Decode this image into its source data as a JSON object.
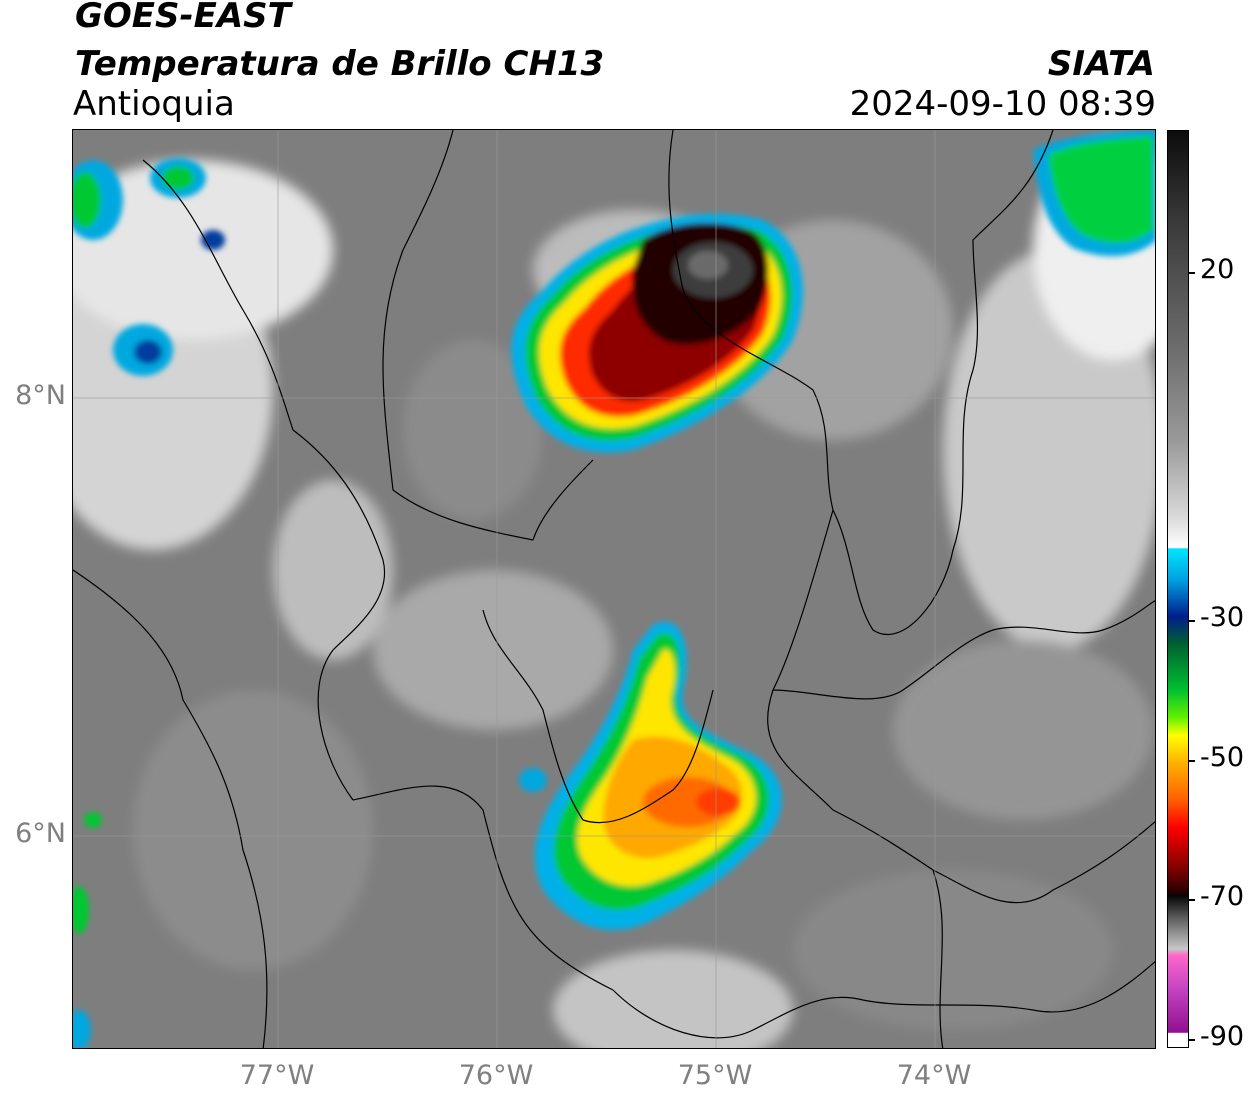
{
  "header": {
    "satellite": "GOES-EAST",
    "product": "Temperatura de Brillo CH13",
    "region": "Antioquia",
    "organization": "SIATA",
    "timestamp": "2024-09-10 08:39"
  },
  "map": {
    "lat_labels": [
      "8°N",
      "6°N"
    ],
    "lon_labels": [
      "77°W",
      "76°W",
      "75°W",
      "74°W"
    ],
    "gridlines": true
  },
  "colorbar": {
    "tick_labels": [
      "20",
      "-30",
      "-50",
      "-70",
      "-90"
    ],
    "colors": {
      "warm": "#7d7d7d",
      "cold_cloud": "#ffffff",
      "cyan": "#00e5ff",
      "blue": "#001e8c",
      "green": "#00c030",
      "yellow": "#ffff00",
      "orange": "#ffb000",
      "red": "#ff0000",
      "black": "#050505",
      "pink": "#ff66cc",
      "purple": "#901090"
    }
  }
}
